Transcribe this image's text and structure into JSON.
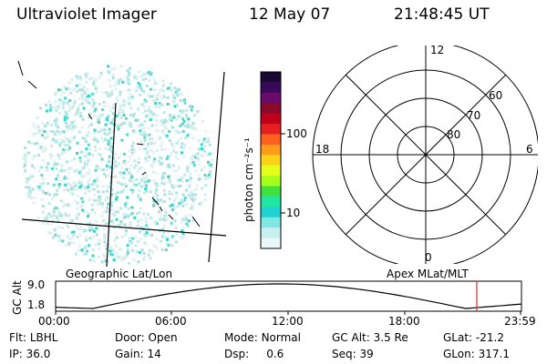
{
  "header": {
    "title": "Ultraviolet Imager",
    "date": "12 May 07",
    "time": "21:48:45 UT"
  },
  "colorbar": {
    "unit_label": "photon cm⁻²s⁻¹",
    "ticks": [
      "100",
      "10"
    ],
    "colors": [
      "#1a0a33",
      "#3a0a5a",
      "#6a0a6a",
      "#8a0a2a",
      "#c0001a",
      "#e62020",
      "#ff6020",
      "#ff9a1a",
      "#ffd21a",
      "#e6ff1a",
      "#a6ff1a",
      "#40e040",
      "#20e6a0",
      "#20d2d2",
      "#80e6e6",
      "#c8f0f0",
      "#e8f8f8"
    ]
  },
  "polar": {
    "mlt_labels": {
      "top": "12",
      "right": "6",
      "bottom": "0",
      "left": "18"
    },
    "lat_labels": [
      "60",
      "70",
      "80"
    ]
  },
  "captions": {
    "left": "Geographic Lat/Lon",
    "right": "Apex MLat/MLT"
  },
  "altitude_plot": {
    "y_axis_label": "GC Alt",
    "y_ticks": [
      "9.0",
      "1.8"
    ],
    "x_ticks": [
      "00:00",
      "06:00",
      "12:00",
      "18:00",
      "23:59"
    ],
    "current_marker_color": "#d03030"
  },
  "info": {
    "row1": [
      {
        "label": "Flt:",
        "value": "LBHL"
      },
      {
        "label": "Door:",
        "value": "Open"
      },
      {
        "label": "Mode:",
        "value": "Normal"
      },
      {
        "label": "GC Alt:",
        "value": "3.5 Re"
      },
      {
        "label": "GLat:",
        "value": "-21.2"
      }
    ],
    "row2": [
      {
        "label": "IP:",
        "value": "36.0"
      },
      {
        "label": "Gain:",
        "value": "14"
      },
      {
        "label": "Dsp:",
        "value": "0.6"
      },
      {
        "label": "Seq:",
        "value": "39"
      },
      {
        "label": "GLon:",
        "value": "317.1"
      }
    ]
  }
}
